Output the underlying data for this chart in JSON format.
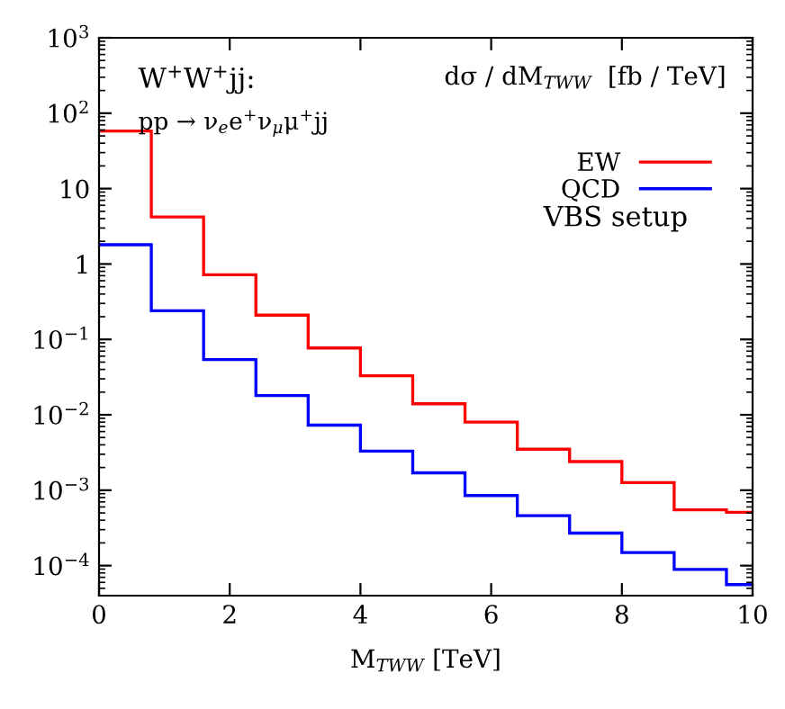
{
  "chart_data": {
    "type": "histogram",
    "xlabel": "M$_{TWW}$ [TeV]",
    "ylabel": "dσ / dM$_{TWW}$  [fb / TeV]",
    "annotations": [
      "W$^{+}$W$^{+}$jj:",
      "pp → ν$_{e}$e$^{+}$ν$_{μ}$μ$^{+}$jj",
      "VBS setup"
    ],
    "bins": [
      0,
      0.8,
      1.6,
      2.4,
      3.2,
      4.0,
      4.8,
      5.6,
      6.4,
      7.2,
      8.0,
      8.8,
      9.6,
      10
    ],
    "series": [
      {
        "name": "EW",
        "color": "#ff0000",
        "values": [
          58,
          4.2,
          0.72,
          0.21,
          0.077,
          0.033,
          0.014,
          0.008,
          0.0035,
          0.0024,
          0.00126,
          0.00055,
          0.00051
        ]
      },
      {
        "name": "QCD",
        "color": "#0000ff",
        "values": [
          1.8,
          0.24,
          0.054,
          0.018,
          0.0073,
          0.0033,
          0.0017,
          0.00085,
          0.00046,
          0.00027,
          0.000149,
          8.9e-05,
          5.6e-05
        ]
      }
    ],
    "log": "y",
    "xlim": [
      0,
      10
    ],
    "ylim": [
      4e-05,
      1000
    ],
    "xticks": [
      0,
      2,
      4,
      6,
      8,
      10
    ],
    "yticks": [
      {
        "value": 0.0001,
        "label": "10$^{−4}$"
      },
      {
        "value": 0.001,
        "label": "10$^{−3}$"
      },
      {
        "value": 0.01,
        "label": "10$^{−2}$"
      },
      {
        "value": 0.1,
        "label": "10$^{−1}$"
      },
      1,
      10,
      {
        "value": 100,
        "label": "10$^{2}$"
      },
      {
        "value": 1000,
        "label": "10$^{3}$"
      }
    ],
    "legend": "right",
    "grid": false
  }
}
